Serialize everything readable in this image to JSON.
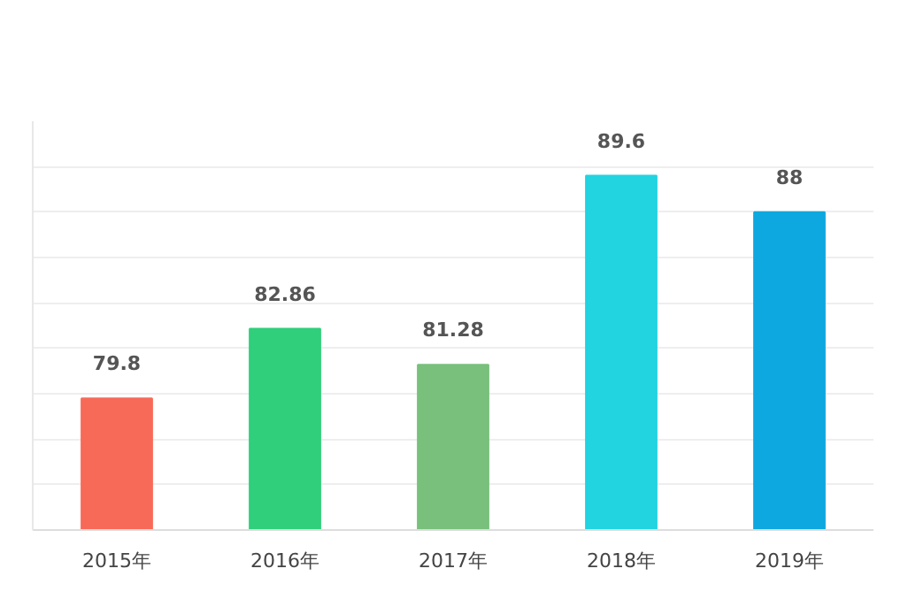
{
  "chart_data": {
    "type": "bar",
    "categories": [
      "2015年",
      "2016年",
      "2017年",
      "2018年",
      "2019年"
    ],
    "values": [
      79.8,
      82.86,
      81.28,
      89.6,
      88
    ],
    "colors": [
      "#f86a58",
      "#30cf7c",
      "#78c07c",
      "#22d3e0",
      "#0ea8e0"
    ],
    "ylim": [
      74,
      92
    ],
    "yticks": [
      {
        "value": 74,
        "label": null
      },
      {
        "value": 76,
        "label": null
      },
      {
        "value": 78,
        "label": null
      },
      {
        "value": 80,
        "label": null
      },
      {
        "value": 82,
        "label": null
      },
      {
        "value": 84,
        "label": null
      },
      {
        "value": 86,
        "label": null
      },
      {
        "value": 88,
        "label": null
      },
      {
        "value": 90,
        "label": null
      }
    ],
    "grid": "y",
    "tick_labels": "x",
    "data_labels": true
  }
}
